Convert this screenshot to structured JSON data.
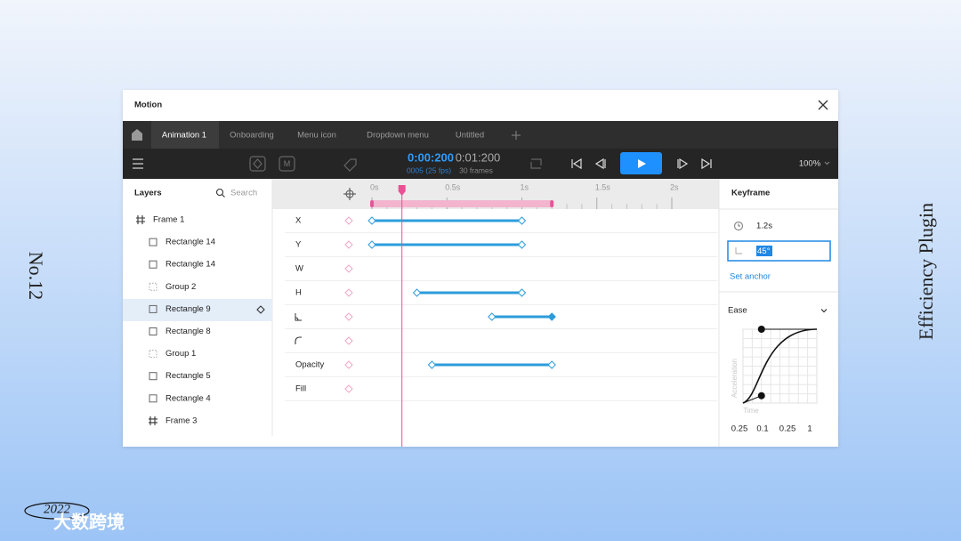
{
  "side": {
    "left": "No.12",
    "right": "Efficiency Plugin"
  },
  "logo": {
    "year": "2022",
    "name": "大数跨境"
  },
  "window": {
    "title": "Motion"
  },
  "tabs": [
    "Animation 1",
    "Onboarding",
    "Menu icon",
    "Dropdown menu",
    "Untitled"
  ],
  "toolbar": {
    "current_time": "0:00:200",
    "total_time": "0:01:200",
    "frame": "0005 (25 fps)",
    "frames": "30 frames",
    "zoom": "100%"
  },
  "layers": {
    "title": "Layers",
    "search": "Search",
    "items": [
      "Frame 1",
      "Rectangle 14",
      "Rectangle 14",
      "Group 2",
      "Rectangle 9",
      "Rectangle 8",
      "Group 1",
      "Rectangle 5",
      "Rectangle 4",
      "Frame 3"
    ]
  },
  "properties": {
    "x": "X",
    "y": "Y",
    "w": "W",
    "h": "H",
    "opacity": "Opacity",
    "fill": "Fill"
  },
  "timeline": {
    "ruler": [
      {
        "value": 0,
        "label": "0s"
      },
      {
        "value": 0.5,
        "label": "0.5s"
      },
      {
        "value": 1,
        "label": "1s"
      },
      {
        "value": 1.5,
        "label": "1.5s"
      },
      {
        "value": 2,
        "label": "2s"
      }
    ],
    "playhead": 0.2,
    "range": [
      0,
      1.2
    ],
    "keyframes": [
      [
        0,
        1
      ],
      [
        0,
        1
      ],
      null,
      [
        0.3,
        1
      ],
      [
        0.8,
        1.2
      ],
      null,
      [
        0.4,
        1.2
      ],
      null
    ]
  },
  "keyframe_panel": {
    "title": "Keyframe",
    "time": "1.2s",
    "angle": "45°",
    "anchor": "Set anchor",
    "ease": "Ease",
    "y_label": "Acceleration",
    "x_label": "Time",
    "bezier": [
      0.25,
      0.1,
      0.25,
      1
    ]
  }
}
